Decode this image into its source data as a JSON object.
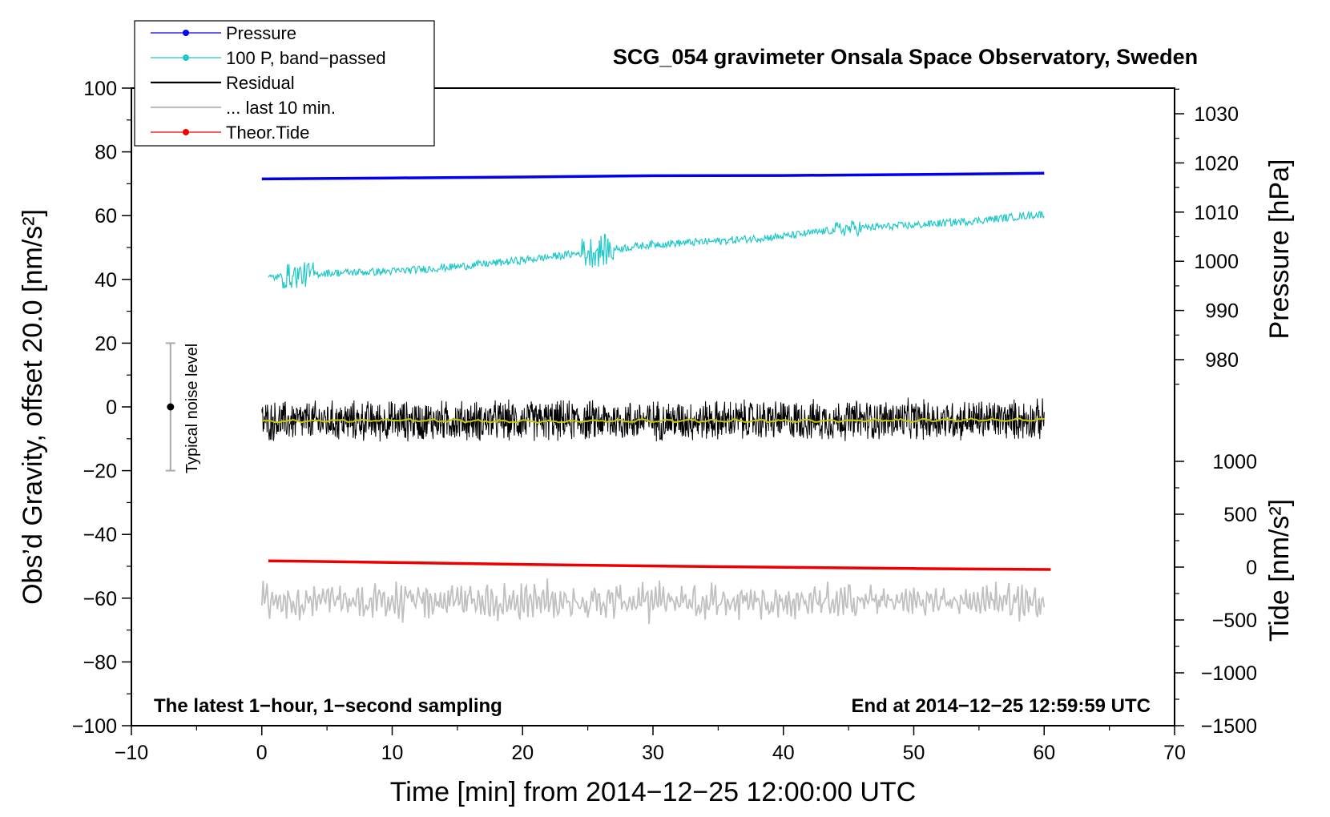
{
  "chart_data": {
    "type": "line",
    "title": "SCG_054 gravimeter Onsala Space Observatory, Sweden",
    "xlabel": "Time [min] from 2014−12−25 12:00:00 UTC",
    "ylabel_left": "Obs’d Gravity, offset 20.0 [nm/s²]",
    "ylabel_right_pressure": "Pressure [hPa]",
    "ylabel_right_tide": "Tide [nm/s²]",
    "xlim": [
      -10,
      70
    ],
    "ylim_left": [
      -100,
      100
    ],
    "x_ticks": [
      "−10",
      "0",
      "10",
      "20",
      "30",
      "40",
      "50",
      "60",
      "70"
    ],
    "y_ticks_left": [
      "−100",
      "−80",
      "−60",
      "−40",
      "−20",
      "0",
      "20",
      "40",
      "60",
      "80",
      "100"
    ],
    "y_ticks_pressure": [
      "980",
      "990",
      "1000",
      "1010",
      "1020",
      "1030"
    ],
    "y_ticks_tide": [
      "−1500",
      "−1000",
      "−500",
      "0",
      "500",
      "1000"
    ],
    "annotations": {
      "bottom_left": "The latest 1−hour, 1−second sampling",
      "bottom_right": "End at 2014−12−25 12:59:59 UTC",
      "noise": "Typical noise level"
    },
    "noise_bar": {
      "x": -7,
      "center": 0,
      "low": -20,
      "high": 20
    },
    "legend": [
      {
        "label": "Pressure",
        "color": "#0000ee",
        "marker": true
      },
      {
        "label": "100 P, band−passed",
        "color": "#20c8c8",
        "marker": true
      },
      {
        "label": "Residual",
        "color": "#000000",
        "marker": false
      },
      {
        "label": "... last 10 min.",
        "color": "#c0c0c0",
        "marker": false
      },
      {
        "label": "Theor.Tide",
        "color": "#ee0000",
        "marker": true
      }
    ],
    "series": [
      {
        "name": "Pressure",
        "color": "#0000ee",
        "x": [
          0,
          10,
          20,
          30,
          40,
          50,
          60
        ],
        "y": [
          71.5,
          71.8,
          72.1,
          72.5,
          72.6,
          72.9,
          73.3
        ]
      },
      {
        "name": "100 P, band−passed",
        "color": "#20c8c8",
        "x": [
          0.5,
          5,
          10,
          15,
          20,
          25,
          30,
          35,
          40,
          45,
          50,
          55,
          60
        ],
        "y": [
          40.5,
          42,
          42.5,
          44,
          46,
          48.5,
          51,
          52,
          53.5,
          56,
          57,
          58.5,
          60.5
        ]
      },
      {
        "name": "Residual",
        "color": "#000000",
        "x": [
          0,
          60
        ],
        "y": [
          -4.5,
          -4
        ],
        "noise_amplitude": 6
      },
      {
        "name": "Residual smoothed",
        "color": "#c8c800",
        "x": [
          0,
          10,
          20,
          30,
          40,
          50,
          60
        ],
        "y": [
          -4.5,
          -4.2,
          -4.6,
          -4.3,
          -4.4,
          -4.2,
          -4.0
        ]
      },
      {
        "name": "... last 10 min.",
        "color": "#c0c0c0",
        "x": [
          0,
          60
        ],
        "y": [
          -61,
          -61
        ],
        "noise_amplitude": 7
      },
      {
        "name": "Theor.Tide",
        "color": "#ee0000",
        "x": [
          0.5,
          10,
          20,
          30,
          40,
          50,
          60.5
        ],
        "y": [
          -48.3,
          -48.8,
          -49.4,
          -49.9,
          -50.3,
          -50.7,
          -51.0
        ]
      }
    ]
  },
  "colors": {
    "pressure": "#0000ee",
    "bandpassed": "#20c8c8",
    "residual": "#000000",
    "smoothed": "#c8c800",
    "last10": "#c0c0c0",
    "tide": "#ee0000"
  }
}
